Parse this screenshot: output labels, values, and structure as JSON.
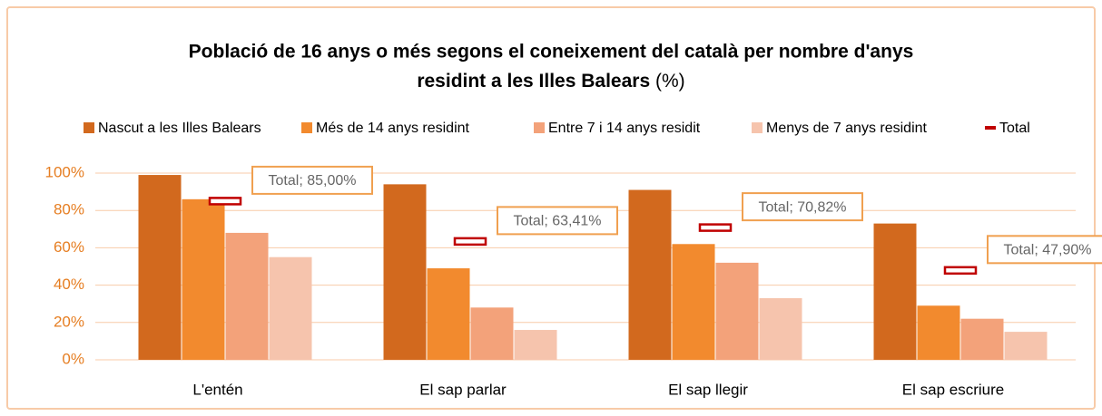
{
  "chart_data": {
    "type": "bar",
    "title": "Població de 16 anys o més segons el coneixement del català per nombre d'anys residint a les Illes Balears",
    "title_suffix": "(%)",
    "categories": [
      "L'entén",
      "El sap parlar",
      "El sap llegir",
      "El sap escriure"
    ],
    "series": [
      {
        "name": "Nascut a les Illes Balears",
        "color": "#d2691e",
        "values": [
          99,
          94,
          91,
          73
        ]
      },
      {
        "name": "Més de 14 anys residint",
        "color": "#f28a2e",
        "values": [
          86,
          49,
          62,
          29
        ]
      },
      {
        "name": "Entre 7 i 14 anys residit",
        "color": "#f3a27a",
        "values": [
          68,
          28,
          52,
          22
        ]
      },
      {
        "name": "Menys de 7 anys residint",
        "color": "#f6c4ad",
        "values": [
          55,
          16,
          33,
          15
        ]
      },
      {
        "name": "Total",
        "color": "#c00000",
        "marker": "dash",
        "values": [
          85.0,
          63.41,
          70.82,
          47.9
        ],
        "value_labels": [
          "Total; 85,00%",
          "Total; 63,41%",
          "Total; 70,82%",
          "Total; 47,90%"
        ]
      }
    ],
    "ylim": [
      0,
      100
    ],
    "yticks": [
      {
        "value": 0,
        "label": "0%"
      },
      {
        "value": 20,
        "label": "20%"
      },
      {
        "value": 40,
        "label": "40%"
      },
      {
        "value": 60,
        "label": "60%"
      },
      {
        "value": 80,
        "label": "80%"
      },
      {
        "value": 100,
        "label": "100%"
      }
    ],
    "grid": true,
    "legend": "top"
  }
}
